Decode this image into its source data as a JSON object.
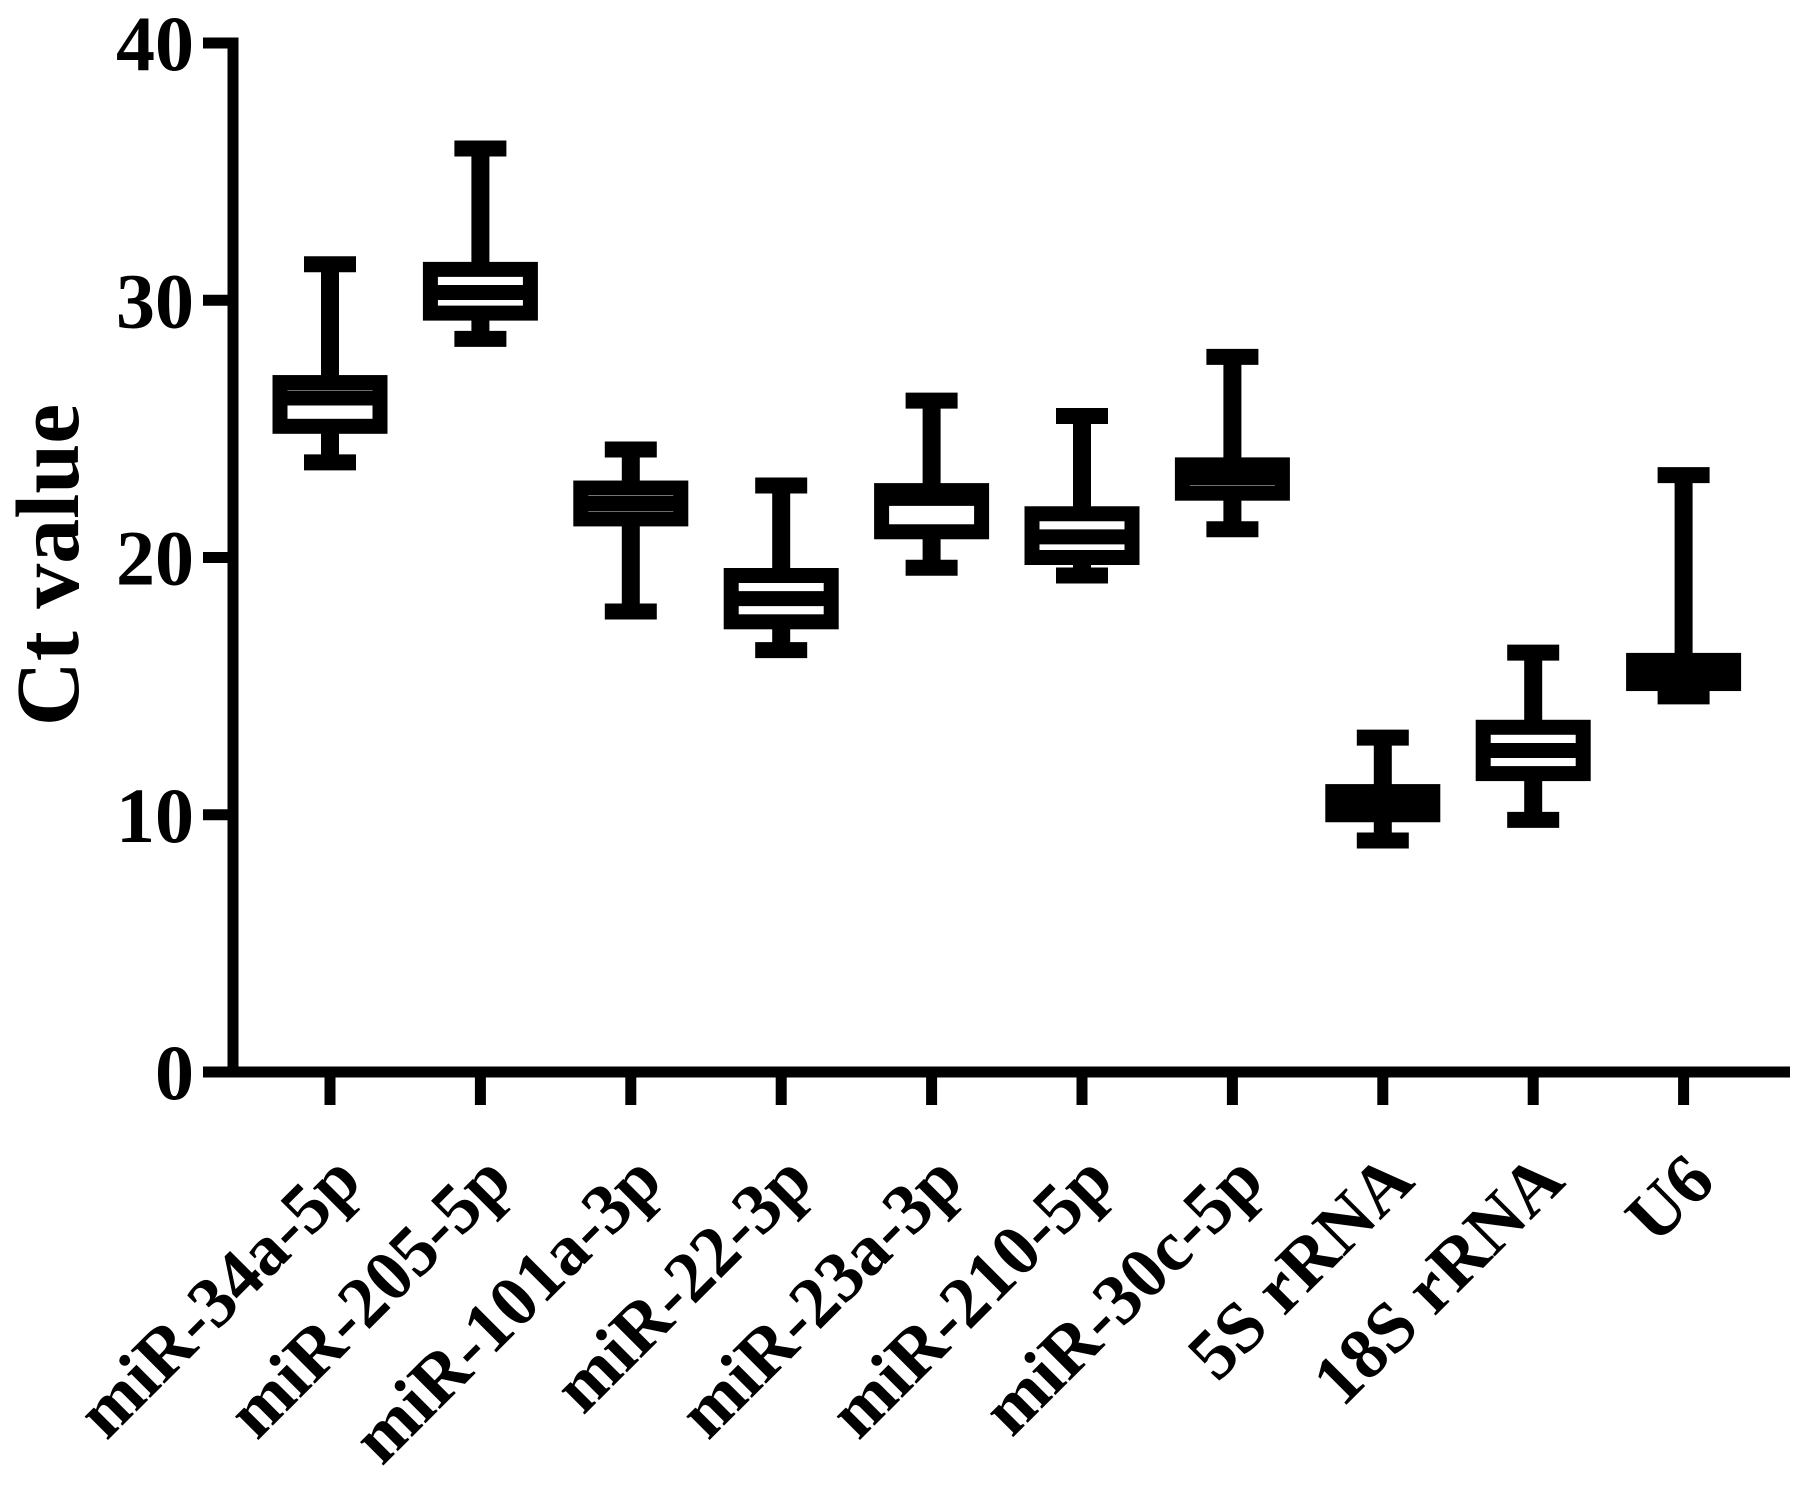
{
  "figure": {
    "background": "#ffffff",
    "ink_color": "#000000"
  },
  "chart_data": {
    "type": "box",
    "title": "",
    "ylabel": "Ct value",
    "xlabel": "",
    "ylim": [
      0,
      40
    ],
    "yticks": [
      0,
      10,
      20,
      30,
      40
    ],
    "grid": false,
    "legend": null,
    "box_fill": "#ffffff",
    "box_stroke": "#000000",
    "whisker_style": "tukey-caps",
    "categories": [
      "miR-34a-5p",
      "miR-205-5p",
      "miR-101a-3p",
      "miR-22-3p",
      "miR-23a-3p",
      "miR-210-5p",
      "miR-30c-5p",
      "5S rRNA",
      "18S rRNA",
      "U6"
    ],
    "boxes": [
      {
        "category": "miR-34a-5p",
        "min": 23.7,
        "q1": 25.1,
        "median": 26.2,
        "q3": 26.8,
        "max": 31.4
      },
      {
        "category": "miR-205-5p",
        "min": 28.5,
        "q1": 29.5,
        "median": 30.3,
        "q3": 31.2,
        "max": 35.9
      },
      {
        "category": "miR-101a-3p",
        "min": 17.9,
        "q1": 21.5,
        "median": 22.1,
        "q3": 22.7,
        "max": 24.2
      },
      {
        "category": "miR-22-3p",
        "min": 16.4,
        "q1": 17.5,
        "median": 18.4,
        "q3": 19.3,
        "max": 22.8
      },
      {
        "category": "miR-23a-3p",
        "min": 19.6,
        "q1": 21.0,
        "median": 22.3,
        "q3": 22.6,
        "max": 26.1
      },
      {
        "category": "miR-210-5p",
        "min": 19.3,
        "q1": 20.0,
        "median": 20.8,
        "q3": 21.7,
        "max": 25.5
      },
      {
        "category": "miR-30c-5p",
        "min": 21.1,
        "q1": 22.5,
        "median": 23.1,
        "q3": 23.6,
        "max": 27.8
      },
      {
        "category": "5S rRNA",
        "min": 9.0,
        "q1": 10.0,
        "median": 10.5,
        "q3": 10.9,
        "max": 13.0
      },
      {
        "category": "18S rRNA",
        "min": 9.8,
        "q1": 11.6,
        "median": 12.5,
        "q3": 13.4,
        "max": 16.3
      },
      {
        "category": "U6",
        "min": 14.6,
        "q1": 15.1,
        "median": 15.5,
        "q3": 16.0,
        "max": 23.2
      }
    ]
  }
}
